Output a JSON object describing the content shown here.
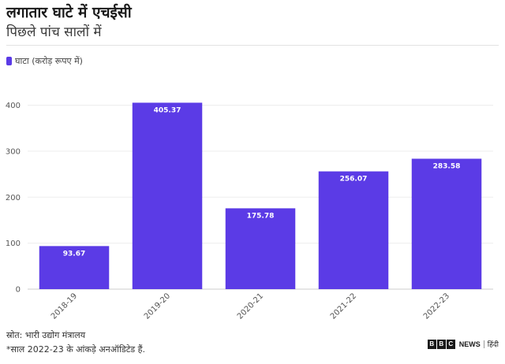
{
  "header": {
    "title": "लगातार घाटे में एचईसी",
    "subtitle": "पिछले पांच सालों में"
  },
  "legend": {
    "label": "घाटा (करोड़ रूपए में)",
    "color": "#5b3be6"
  },
  "chart_data": {
    "type": "bar",
    "categories": [
      "2018-19",
      "2019-20",
      "2020-21",
      "2021-22",
      "2022-23"
    ],
    "series": [
      {
        "name": "घाटा (करोड़ रूपए में)",
        "values": [
          93.67,
          405.37,
          175.78,
          256.07,
          283.58
        ]
      }
    ],
    "value_labels": [
      "93.67",
      "405.37",
      "175.78",
      "256.07",
      "283.58"
    ],
    "ylim": [
      0,
      430
    ],
    "yticks": [
      0,
      100,
      200,
      300,
      400
    ],
    "grid": true,
    "legend_position": "top-left",
    "bar_color": "#5b3be6"
  },
  "footer": {
    "source": "स्रोत: भारी उद्योग मंत्रालय",
    "note": "*साल 2022-23 के आंकड़े अनऑडिटेड हैं.",
    "brand_letters": [
      "B",
      "B",
      "C"
    ],
    "brand_news": "NEWS",
    "brand_lang": "हिंदी"
  }
}
